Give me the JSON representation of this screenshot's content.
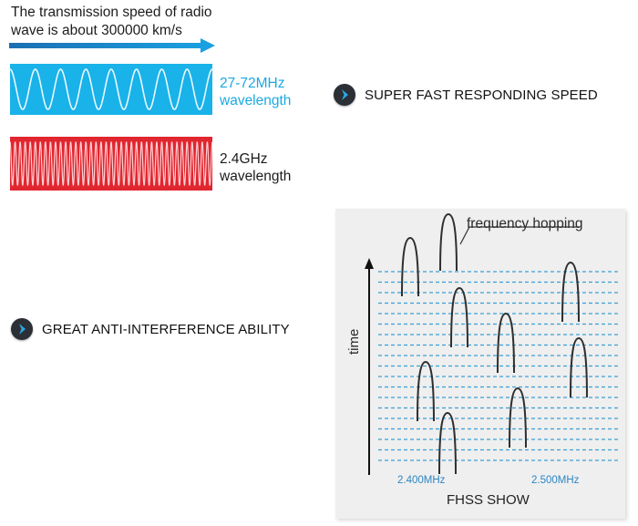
{
  "speed_note": {
    "line1": "The transmission speed of radio",
    "line2": "wave is about 300000 km/s"
  },
  "waves": [
    {
      "line1": "27-72MHz",
      "line2": "wavelength",
      "color": "#19b2e9",
      "cycles": 8
    },
    {
      "line1": "2.4GHz",
      "line2": "wavelength",
      "color": "#e0262f",
      "cycles": 40
    }
  ],
  "features": {
    "speed": "SUPER FAST RESPONDING SPEED",
    "interference": "GREAT ANTI-INTERFERENCE ABILITY"
  },
  "fhss": {
    "hop_label": "frequency hopping",
    "time_label": "time",
    "freq_low": "2.400MHz",
    "freq_high": "2.500MHz",
    "title": "FHSS SHOW",
    "line_color": "#3a9fd6"
  }
}
